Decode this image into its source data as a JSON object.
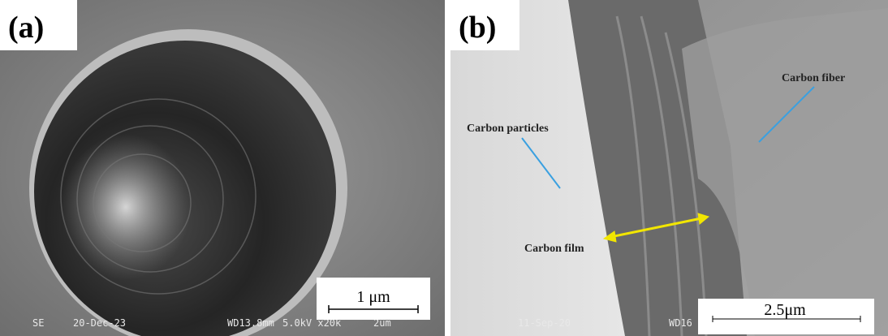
{
  "panels": [
    {
      "label": "(a)",
      "scale_bar": "1 μm",
      "info": [
        "SE",
        "20-Dec-23",
        "WD13.8mm",
        "5.0kV x20k",
        "2um"
      ]
    },
    {
      "label": "(b)",
      "scale_bar": "2.5μm",
      "info": [
        "11-Sep-20",
        "WD16"
      ],
      "annotations": [
        "Carbon particles",
        "Carbon fiber",
        "Carbon film"
      ]
    }
  ]
}
